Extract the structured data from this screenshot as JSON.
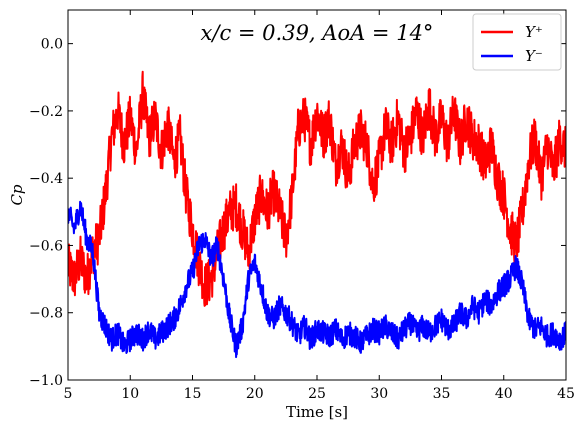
{
  "chart_data": {
    "type": "line",
    "title": "x/c = 0.39,  AoA = 14°",
    "xlabel": "Time [s]",
    "ylabel": "Cp",
    "xlim": [
      5,
      45
    ],
    "ylim": [
      -1.0,
      0.1
    ],
    "xticks": [
      5,
      10,
      15,
      20,
      25,
      30,
      35,
      40,
      45
    ],
    "yticks": [
      0.0,
      -0.2,
      -0.4,
      -0.6,
      -0.8,
      -1.0
    ],
    "xtick_labels": [
      "5",
      "10",
      "15",
      "20",
      "25",
      "30",
      "35",
      "40",
      "45"
    ],
    "ytick_labels": [
      "0.0",
      "−0.2",
      "−0.4",
      "−0.6",
      "−0.8",
      "−1.0"
    ],
    "legend_position": "top-right",
    "grid": false,
    "series": [
      {
        "name": "Y⁺",
        "color": "#ff0000",
        "points": [
          [
            5,
            -0.66
          ],
          [
            5.5,
            -0.7
          ],
          [
            6,
            -0.64
          ],
          [
            6.5,
            -0.7
          ],
          [
            7,
            -0.62
          ],
          [
            7.5,
            -0.58
          ],
          [
            8,
            -0.45
          ],
          [
            8.5,
            -0.28
          ],
          [
            9,
            -0.2
          ],
          [
            9.5,
            -0.3
          ],
          [
            10,
            -0.22
          ],
          [
            10.5,
            -0.32
          ],
          [
            11,
            -0.15
          ],
          [
            11.5,
            -0.28
          ],
          [
            12,
            -0.22
          ],
          [
            12.5,
            -0.32
          ],
          [
            13,
            -0.24
          ],
          [
            13.5,
            -0.35
          ],
          [
            14,
            -0.28
          ],
          [
            14.5,
            -0.45
          ],
          [
            15,
            -0.55
          ],
          [
            15.5,
            -0.65
          ],
          [
            16,
            -0.72
          ],
          [
            16.5,
            -0.7
          ],
          [
            17,
            -0.62
          ],
          [
            17.5,
            -0.55
          ],
          [
            18,
            -0.5
          ],
          [
            18.5,
            -0.48
          ],
          [
            19,
            -0.55
          ],
          [
            19.5,
            -0.62
          ],
          [
            20,
            -0.52
          ],
          [
            20.5,
            -0.45
          ],
          [
            21,
            -0.5
          ],
          [
            21.5,
            -0.44
          ],
          [
            22,
            -0.5
          ],
          [
            22.5,
            -0.58
          ],
          [
            23,
            -0.45
          ],
          [
            23.5,
            -0.25
          ],
          [
            24,
            -0.22
          ],
          [
            24.5,
            -0.3
          ],
          [
            25,
            -0.2
          ],
          [
            25.5,
            -0.28
          ],
          [
            26,
            -0.22
          ],
          [
            26.5,
            -0.36
          ],
          [
            27,
            -0.3
          ],
          [
            27.5,
            -0.4
          ],
          [
            28,
            -0.3
          ],
          [
            28.5,
            -0.26
          ],
          [
            29,
            -0.3
          ],
          [
            29.5,
            -0.42
          ],
          [
            30,
            -0.35
          ],
          [
            30.5,
            -0.25
          ],
          [
            31,
            -0.3
          ],
          [
            31.5,
            -0.22
          ],
          [
            32,
            -0.32
          ],
          [
            32.5,
            -0.28
          ],
          [
            33,
            -0.2
          ],
          [
            33.5,
            -0.28
          ],
          [
            34,
            -0.18
          ],
          [
            34.5,
            -0.28
          ],
          [
            35,
            -0.22
          ],
          [
            35.5,
            -0.3
          ],
          [
            36,
            -0.2
          ],
          [
            36.5,
            -0.3
          ],
          [
            37,
            -0.22
          ],
          [
            37.5,
            -0.28
          ],
          [
            38,
            -0.3
          ],
          [
            38.5,
            -0.36
          ],
          [
            39,
            -0.3
          ],
          [
            39.5,
            -0.4
          ],
          [
            40,
            -0.45
          ],
          [
            40.5,
            -0.55
          ],
          [
            41,
            -0.6
          ],
          [
            41.5,
            -0.5
          ],
          [
            42,
            -0.35
          ],
          [
            42.5,
            -0.28
          ],
          [
            43,
            -0.4
          ],
          [
            43.5,
            -0.3
          ],
          [
            44,
            -0.38
          ],
          [
            44.5,
            -0.28
          ],
          [
            45,
            -0.32
          ]
        ]
      },
      {
        "name": "Y⁻",
        "color": "#0000ff",
        "points": [
          [
            5,
            -0.5
          ],
          [
            5.5,
            -0.55
          ],
          [
            6,
            -0.48
          ],
          [
            6.5,
            -0.58
          ],
          [
            7,
            -0.62
          ],
          [
            7.5,
            -0.8
          ],
          [
            8,
            -0.84
          ],
          [
            8.5,
            -0.88
          ],
          [
            9,
            -0.86
          ],
          [
            9.5,
            -0.9
          ],
          [
            10,
            -0.88
          ],
          [
            10.5,
            -0.86
          ],
          [
            11,
            -0.88
          ],
          [
            11.5,
            -0.85
          ],
          [
            12,
            -0.88
          ],
          [
            12.5,
            -0.86
          ],
          [
            13,
            -0.84
          ],
          [
            13.5,
            -0.82
          ],
          [
            14,
            -0.78
          ],
          [
            14.5,
            -0.72
          ],
          [
            15,
            -0.68
          ],
          [
            15.5,
            -0.6
          ],
          [
            16,
            -0.58
          ],
          [
            16.5,
            -0.64
          ],
          [
            17,
            -0.6
          ],
          [
            17.5,
            -0.7
          ],
          [
            18,
            -0.82
          ],
          [
            18.5,
            -0.9
          ],
          [
            19,
            -0.84
          ],
          [
            19.5,
            -0.7
          ],
          [
            20,
            -0.65
          ],
          [
            20.5,
            -0.72
          ],
          [
            21,
            -0.8
          ],
          [
            21.5,
            -0.82
          ],
          [
            22,
            -0.78
          ],
          [
            22.5,
            -0.8
          ],
          [
            23,
            -0.83
          ],
          [
            23.5,
            -0.87
          ],
          [
            24,
            -0.84
          ],
          [
            24.5,
            -0.88
          ],
          [
            25,
            -0.85
          ],
          [
            25.5,
            -0.86
          ],
          [
            26,
            -0.87
          ],
          [
            26.5,
            -0.85
          ],
          [
            27,
            -0.88
          ],
          [
            27.5,
            -0.86
          ],
          [
            28,
            -0.87
          ],
          [
            28.5,
            -0.89
          ],
          [
            29,
            -0.87
          ],
          [
            29.5,
            -0.85
          ],
          [
            30,
            -0.86
          ],
          [
            30.5,
            -0.84
          ],
          [
            31,
            -0.86
          ],
          [
            31.5,
            -0.88
          ],
          [
            32,
            -0.85
          ],
          [
            32.5,
            -0.83
          ],
          [
            33,
            -0.86
          ],
          [
            33.5,
            -0.84
          ],
          [
            34,
            -0.86
          ],
          [
            34.5,
            -0.84
          ],
          [
            35,
            -0.82
          ],
          [
            35.5,
            -0.85
          ],
          [
            36,
            -0.84
          ],
          [
            36.5,
            -0.8
          ],
          [
            37,
            -0.82
          ],
          [
            37.5,
            -0.78
          ],
          [
            38,
            -0.8
          ],
          [
            38.5,
            -0.76
          ],
          [
            39,
            -0.78
          ],
          [
            39.5,
            -0.74
          ],
          [
            40,
            -0.72
          ],
          [
            40.5,
            -0.7
          ],
          [
            41,
            -0.66
          ],
          [
            41.5,
            -0.72
          ],
          [
            42,
            -0.82
          ],
          [
            42.5,
            -0.85
          ],
          [
            43,
            -0.84
          ],
          [
            43.5,
            -0.87
          ],
          [
            44,
            -0.86
          ],
          [
            44.5,
            -0.88
          ],
          [
            45,
            -0.86
          ]
        ]
      }
    ]
  }
}
